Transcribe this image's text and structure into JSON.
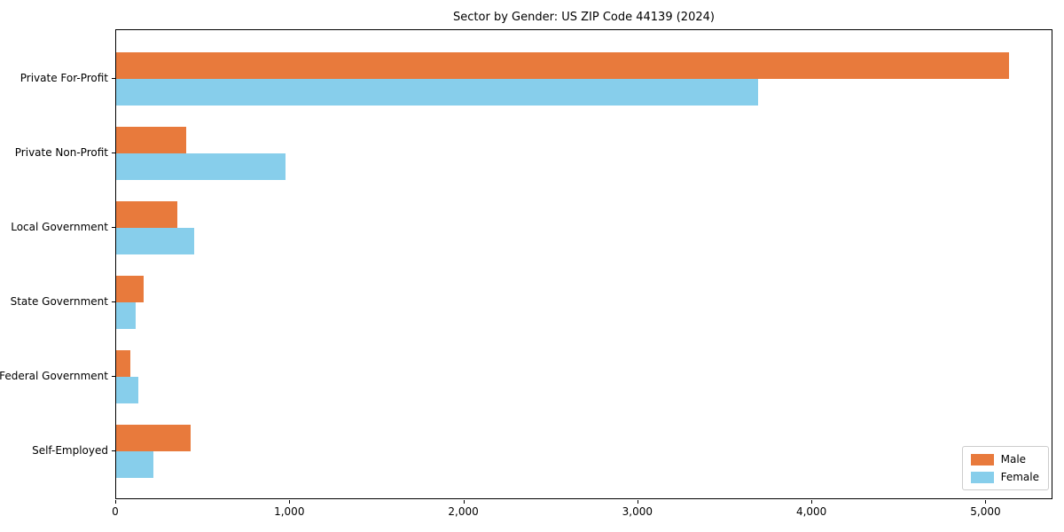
{
  "chart_data": {
    "type": "bar",
    "orientation": "horizontal",
    "title": "Sector by Gender: US ZIP Code 44139 (2024)",
    "categories": [
      "Private For-Profit",
      "Private Non-Profit",
      "Local Government",
      "State Government",
      "Federal Government",
      "Self-Employed"
    ],
    "series": [
      {
        "name": "Male",
        "color": "#E87A3C",
        "values": [
          5128,
          403,
          352,
          158,
          82,
          429
        ]
      },
      {
        "name": "Female",
        "color": "#87CEEB",
        "values": [
          3690,
          973,
          447,
          112,
          128,
          214
        ]
      }
    ],
    "xlabel": "",
    "ylabel": "",
    "xlim": [
      0,
      5385
    ],
    "x_ticks": [
      {
        "value": 0,
        "label": "0"
      },
      {
        "value": 1000,
        "label": "1,000"
      },
      {
        "value": 2000,
        "label": "2,000"
      },
      {
        "value": 3000,
        "label": "3,000"
      },
      {
        "value": 4000,
        "label": "4,000"
      },
      {
        "value": 5000,
        "label": "5,000"
      }
    ],
    "legend": {
      "position": "lower right",
      "entries": [
        "Male",
        "Female"
      ]
    },
    "grid": false,
    "colors": {
      "male": "#E87A3C",
      "female": "#87CEEB",
      "spine": "#000000",
      "legend_border": "#cccccc"
    }
  }
}
